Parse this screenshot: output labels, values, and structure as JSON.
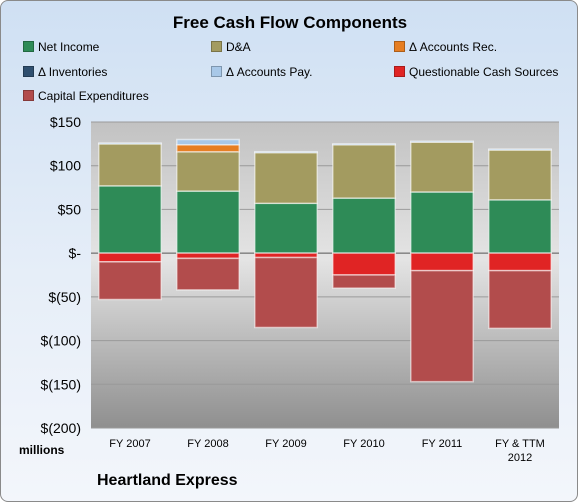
{
  "chart_data": {
    "type": "bar",
    "stacked": true,
    "title": "Free Cash Flow Components",
    "categories": [
      "FY 2007",
      "FY 2008",
      "FY 2009",
      "FY 2010",
      "FY 2011",
      "FY & TTM 2012"
    ],
    "ylim": [
      -200,
      150
    ],
    "yticks": [
      150,
      100,
      50,
      0,
      -50,
      -100,
      -150,
      -200
    ],
    "ytick_labels": [
      "$150",
      "$100",
      "$50",
      "$-",
      "$(50)",
      "$(100)",
      "$(150)",
      "$(200)"
    ],
    "ylabel": "millions",
    "legend_position": "top",
    "series": [
      {
        "name": "Net Income",
        "color": "#2e8b57",
        "values": [
          77,
          71,
          57,
          63,
          70,
          61
        ]
      },
      {
        "name": "D&A",
        "color": "#a39b60",
        "values": [
          48,
          45,
          58,
          61,
          57,
          57
        ]
      },
      {
        "name": "Δ Accounts Rec.",
        "color": "#e67e22",
        "values": [
          0,
          8,
          0,
          0,
          0,
          0
        ]
      },
      {
        "name": "Δ Inventories",
        "color": "#2f4f6f",
        "values": [
          0,
          0,
          0,
          0,
          0,
          0
        ]
      },
      {
        "name": "Δ Accounts Pay.",
        "color": "#a8c8e8",
        "values": [
          1,
          6,
          1,
          1,
          1,
          1
        ]
      },
      {
        "name": "Questionable Cash Sources",
        "color": "#e02424",
        "values": [
          -10,
          -6,
          -5,
          -25,
          -20,
          -20
        ]
      },
      {
        "name": "Capital Expenditures",
        "color": "#b24c4c",
        "values": [
          -43,
          -36,
          -80,
          -15,
          -127,
          -66
        ]
      }
    ]
  },
  "footer": {
    "company": "Heartland Express"
  }
}
